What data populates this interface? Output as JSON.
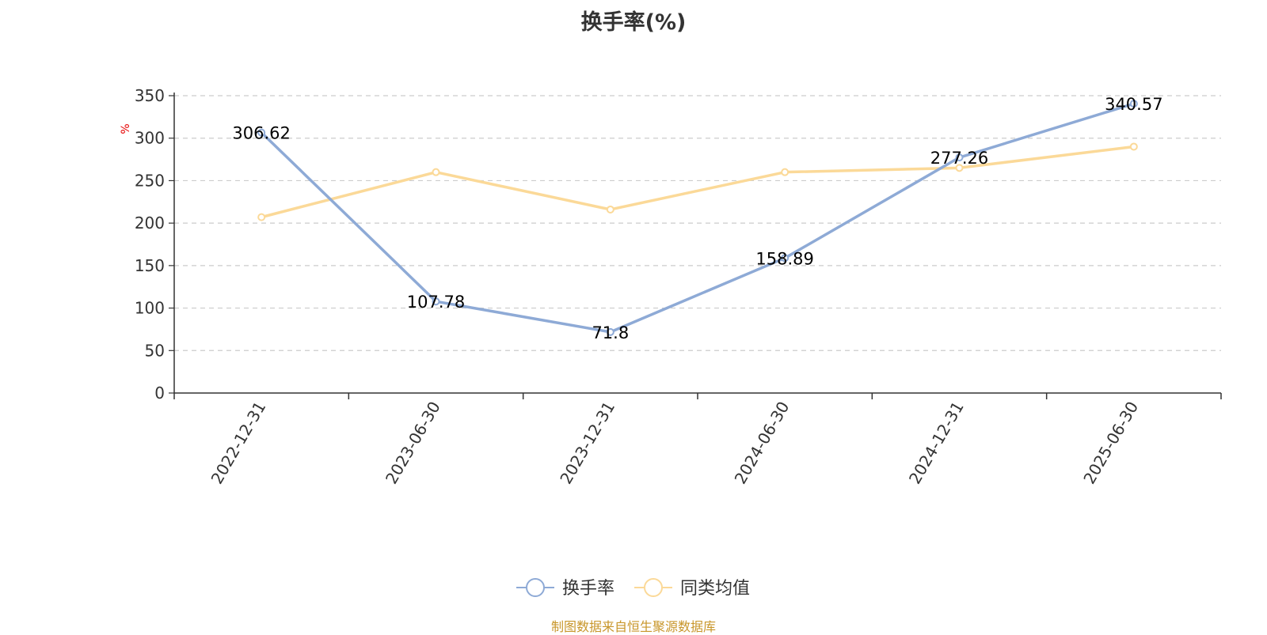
{
  "chart_data": {
    "type": "line",
    "title": "换手率(%)",
    "ylabel": "%",
    "ylim": [
      0,
      350
    ],
    "yticks": [
      0,
      50,
      100,
      150,
      200,
      250,
      300,
      350
    ],
    "grid": true,
    "legend_position": "bottom-center",
    "categories": [
      "2022-12-31",
      "2023-06-30",
      "2023-12-31",
      "2024-06-30",
      "2024-12-31",
      "2025-06-30"
    ],
    "series": [
      {
        "name": "换手率",
        "color": "#8eaad6",
        "values": [
          306.62,
          107.78,
          71.8,
          158.89,
          277.26,
          340.57
        ],
        "labels": [
          "306.62",
          "107.78",
          "71.8",
          "158.89",
          "277.26",
          "340.57"
        ]
      },
      {
        "name": "同类均值",
        "color": "#fbd998",
        "values": [
          207,
          260,
          216,
          260,
          265,
          290
        ]
      }
    ]
  },
  "source_note": "制图数据来自恒生聚源数据库"
}
